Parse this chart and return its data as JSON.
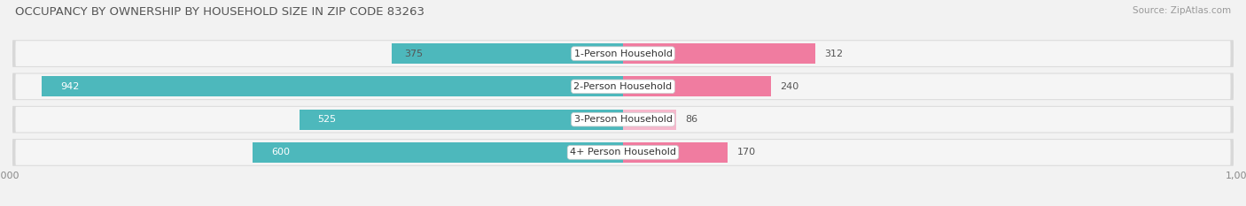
{
  "title": "OCCUPANCY BY OWNERSHIP BY HOUSEHOLD SIZE IN ZIP CODE 83263",
  "source": "Source: ZipAtlas.com",
  "categories": [
    "1-Person Household",
    "2-Person Household",
    "3-Person Household",
    "4+ Person Household"
  ],
  "owner_values": [
    375,
    942,
    525,
    600
  ],
  "renter_values": [
    312,
    240,
    86,
    170
  ],
  "owner_color": "#4db8bc",
  "renter_color": "#f07ca0",
  "renter_color_light": "#f5b8cc",
  "bg_color": "#f2f2f2",
  "row_bg_color": "#e0e0e0",
  "row_inner_color": "#f8f8f8",
  "axis_max": 1000,
  "title_fontsize": 9.5,
  "source_fontsize": 7.5,
  "bar_label_fontsize": 8,
  "cat_label_fontsize": 8,
  "legend_fontsize": 8,
  "axis_label_fontsize": 8
}
